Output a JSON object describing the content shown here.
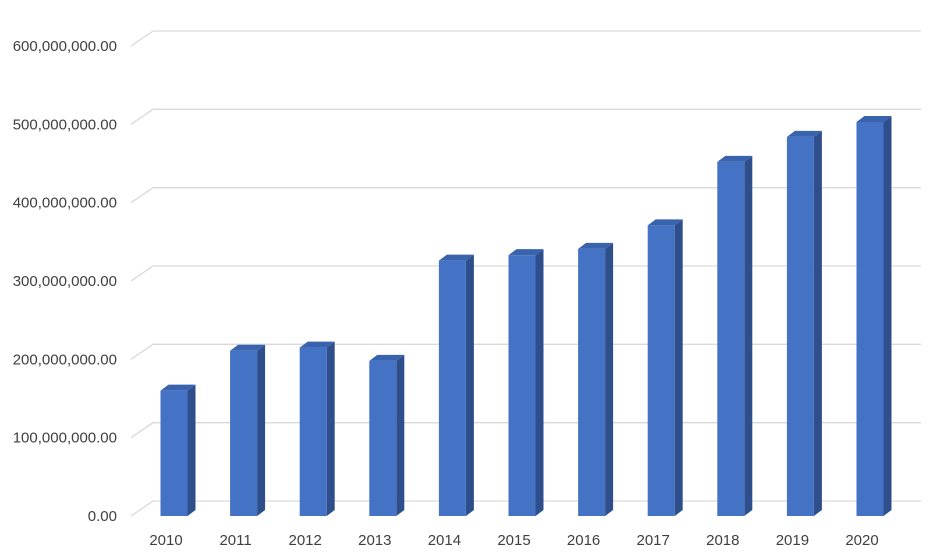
{
  "chart_data": {
    "type": "bar",
    "title": "",
    "xlabel": "",
    "ylabel": "",
    "categories": [
      "2010",
      "2011",
      "2012",
      "2013",
      "2014",
      "2015",
      "2016",
      "2017",
      "2018",
      "2019",
      "2020"
    ],
    "values": [
      160000000,
      211000000,
      215000000,
      198000000,
      326000000,
      333000000,
      341000000,
      371000000,
      452000000,
      484000000,
      503000000
    ],
    "ylim": [
      0,
      600000000
    ],
    "yticks": [
      0,
      100000000,
      200000000,
      300000000,
      400000000,
      500000000,
      600000000
    ],
    "ytick_labels": [
      "0.00",
      "100,000,000.00",
      "200,000,000.00",
      "300,000,000.00",
      "400,000,000.00",
      "500,000,000.00",
      "600,000,000.00"
    ],
    "grid": true,
    "legend": "none",
    "style": "3d-column",
    "colors": {
      "bar_front": "#4472C4",
      "bar_side": "#2E4F8C",
      "bar_top": "#3A63AE",
      "gridline": "#D9D9D9",
      "tick_text": "#404040"
    }
  }
}
